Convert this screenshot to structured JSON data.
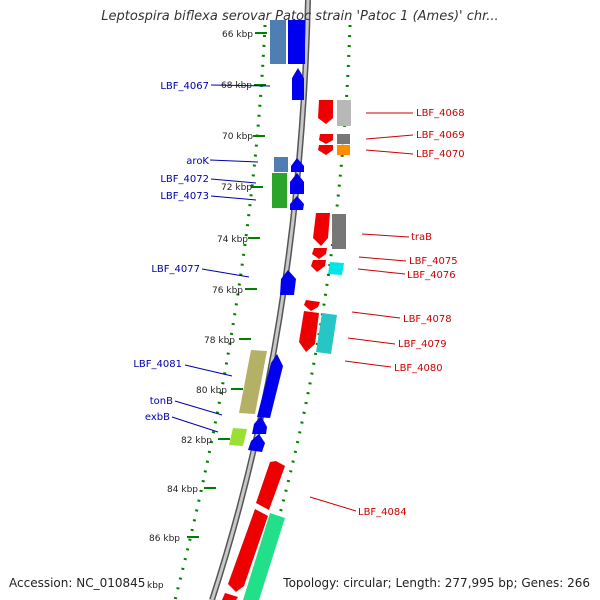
{
  "title": "Leptospira biflexa serovar Patoc strain 'Patoc 1 (Ames)' chr...",
  "footer": {
    "accession": "Accession: NC_010845",
    "topology": "Topology: circular; Length: 277,995 bp; Genes: 266"
  },
  "kbp_labels": [
    "66 kbp",
    "68 kbp",
    "70 kbp",
    "72 kbp",
    "74 kbp",
    "76 kbp",
    "78 kbp",
    "80 kbp",
    "82 kbp",
    "84 kbp",
    "86 kbp"
  ],
  "footer_stub_label": "kbp",
  "colors": {
    "forward_cds": "#0000ff",
    "reverse_cds": "#ff0000",
    "backbone": "#888888",
    "ticks": "#008000",
    "forward_label": "#0000aa",
    "reverse_label": "#cc0000"
  },
  "forward_labels": [
    "LBF_4067",
    "aroK",
    "LBF_4072",
    "LBF_4073",
    "LBF_4077",
    "LBF_4081",
    "tonB",
    "exbB"
  ],
  "reverse_labels": [
    "LBF_4068",
    "LBF_4069",
    "LBF_4070",
    "traB",
    "LBF_4075",
    "LBF_4076",
    "LBF_4078",
    "LBF_4079",
    "LBF_4080",
    "LBF_4084"
  ]
}
